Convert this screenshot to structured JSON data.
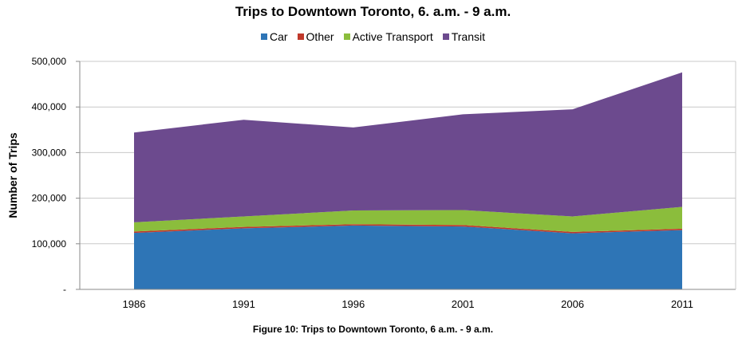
{
  "chart_data": {
    "type": "area",
    "stacked": true,
    "title": "Trips to Downtown Toronto, 6. a.m. - 9 a.m.",
    "ylabel": "Number of Trips",
    "xlabel": "",
    "categories": [
      "1986",
      "1991",
      "1996",
      "2001",
      "2006",
      "2011"
    ],
    "y_tick_labels": [
      "-",
      "100,000",
      "200,000",
      "300,000",
      "400,000",
      "500,000"
    ],
    "ylim": [
      0,
      500000
    ],
    "grid": true,
    "legend_position": "top",
    "series": [
      {
        "name": "Car",
        "color": "#2e75b6",
        "values": [
          124000,
          134000,
          140000,
          138000,
          123000,
          130000
        ]
      },
      {
        "name": "Other",
        "color": "#c0392b",
        "values": [
          3000,
          3000,
          3000,
          3000,
          3000,
          3000
        ]
      },
      {
        "name": "Active Transport",
        "color": "#8bbd3c",
        "values": [
          20000,
          23000,
          30000,
          33000,
          34000,
          48000
        ]
      },
      {
        "name": "Transit",
        "color": "#6c4a8e",
        "values": [
          197000,
          212000,
          182000,
          210000,
          235000,
          295000
        ]
      }
    ]
  },
  "caption": "Figure 10: Trips to Downtown Toronto, 6 a.m. - 9 a.m."
}
